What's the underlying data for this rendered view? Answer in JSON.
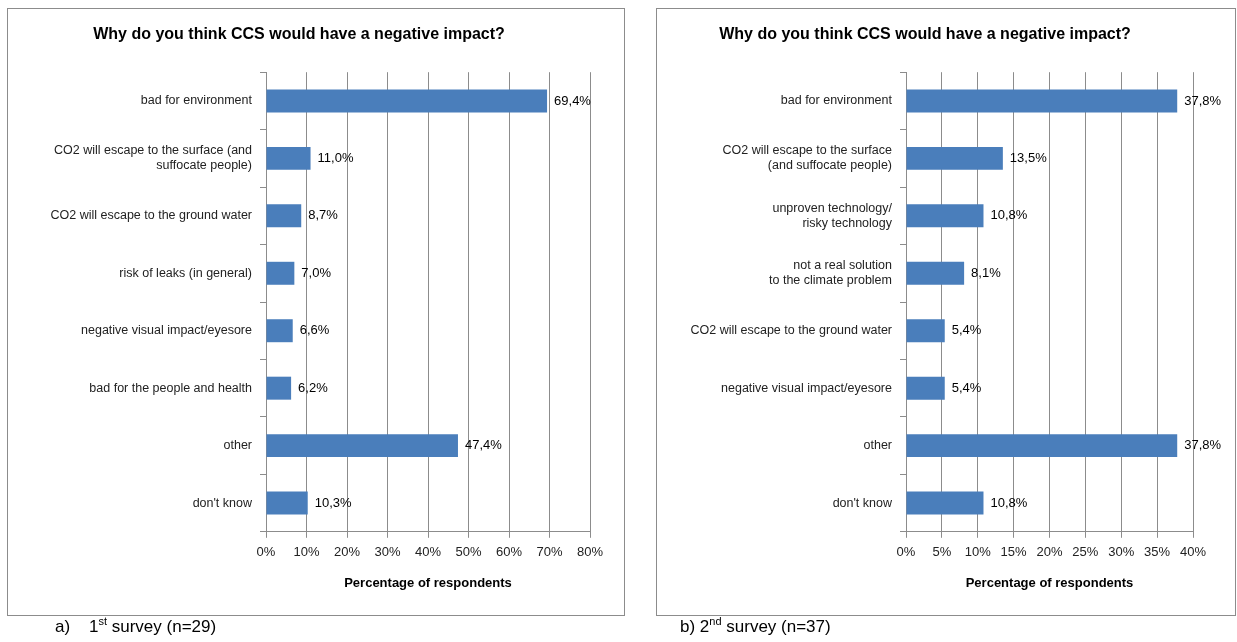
{
  "chart_data": [
    {
      "type": "bar",
      "orientation": "horizontal",
      "title": "Why do you think CCS would have a negative impact?",
      "xlabel": "Percentage of respondents",
      "categories": [
        "bad for environment",
        "CO2 will escape to the surface (and\nsuffocate people)",
        "CO2 will escape to the ground water",
        "risk of leaks (in general)",
        "negative visual impact/eyesore",
        "bad for the people and health",
        "other",
        "don't know"
      ],
      "values": [
        69.4,
        11.0,
        8.7,
        7.0,
        6.6,
        6.2,
        47.4,
        10.3
      ],
      "color": "#4a7ebb",
      "value_labels": [
        "69,4%",
        "11,0%",
        "8,7%",
        "7,0%",
        "6,6%",
        "6,2%",
        "47,4%",
        "10,3%"
      ],
      "xlim": [
        0,
        80
      ],
      "xticks": [
        {
          "value": 0,
          "label": "0%"
        },
        {
          "value": 10,
          "label": "10%"
        },
        {
          "value": 20,
          "label": "20%"
        },
        {
          "value": 30,
          "label": "30%"
        },
        {
          "value": 40,
          "label": "40%"
        },
        {
          "value": 50,
          "label": "50%"
        },
        {
          "value": 60,
          "label": "60%"
        },
        {
          "value": 70,
          "label": "70%"
        },
        {
          "value": 80,
          "label": "80%"
        }
      ],
      "grid": "x",
      "annotations": [
        "a)    1$^{st}$ survey (n=29)"
      ]
    },
    {
      "type": "bar",
      "orientation": "horizontal",
      "title": "Why do you think CCS would have a negative impact?",
      "xlabel": "Percentage of respondents",
      "categories": [
        "bad for environment",
        "CO2 will escape to the surface\n(and suffocate people)",
        "unproven technology/\nrisky technology",
        "not a real solution\nto the climate problem",
        "CO2 will escape to the ground water",
        "negative visual impact/eyesore",
        "other",
        "don't know"
      ],
      "values": [
        37.8,
        13.5,
        10.8,
        8.1,
        5.4,
        5.4,
        37.8,
        10.8
      ],
      "color": "#4a7ebb",
      "value_labels": [
        "37,8%",
        "13,5%",
        "10,8%",
        "8,1%",
        "5,4%",
        "5,4%",
        "37,8%",
        "10,8%"
      ],
      "xlim": [
        0,
        40
      ],
      "xticks": [
        {
          "value": 0,
          "label": "0%"
        },
        {
          "value": 5,
          "label": "5%"
        },
        {
          "value": 10,
          "label": "10%"
        },
        {
          "value": 15,
          "label": "15%"
        },
        {
          "value": 20,
          "label": "20%"
        },
        {
          "value": 25,
          "label": "25%"
        },
        {
          "value": 30,
          "label": "30%"
        },
        {
          "value": 35,
          "label": "35%"
        },
        {
          "value": 40,
          "label": "40%"
        }
      ],
      "grid": "x",
      "annotations": [
        "b) 2$^{nd}$ survey (n=37)"
      ]
    }
  ]
}
